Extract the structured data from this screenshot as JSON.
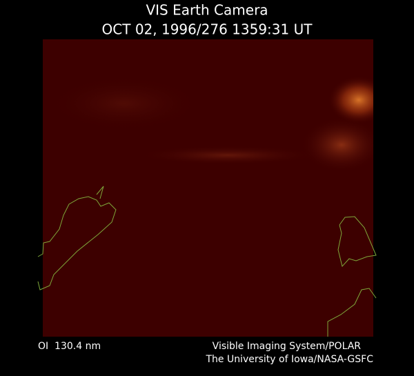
{
  "header": {
    "title": "VIS Earth Camera",
    "subtitle": "OCT 02, 1996/276 1359:31 UT"
  },
  "footer": {
    "left": "OI  130.4 nm",
    "right": [
      "Visible Imaging System/POLAR",
      "The University of Iowa/NASA-GSFC"
    ]
  }
}
